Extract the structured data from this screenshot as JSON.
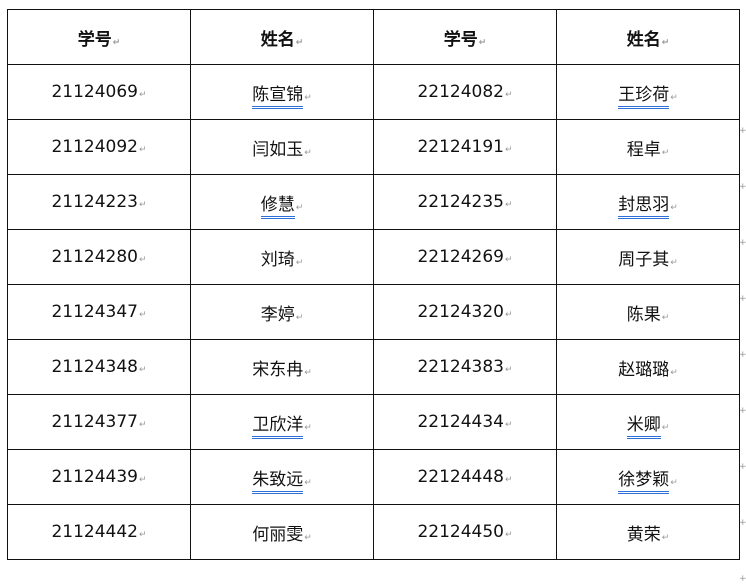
{
  "headers": [
    "学号",
    "姓名",
    "学号",
    "姓名"
  ],
  "paragraph_mark": "↵",
  "row_end_mark": "+",
  "rows": [
    {
      "id1": "21124069",
      "name1": "陈宣锦",
      "ul1": true,
      "id2": "22124082",
      "name2": "王珍荷",
      "ul2": true
    },
    {
      "id1": "21124092",
      "name1": "闫如玉",
      "ul1": false,
      "id2": "22124191",
      "name2": "程卓",
      "ul2": false
    },
    {
      "id1": "21124223",
      "name1": "修慧",
      "ul1": true,
      "id2": "22124235",
      "name2": "封思羽",
      "ul2": true
    },
    {
      "id1": "21124280",
      "name1": "刘琦",
      "ul1": false,
      "id2": "22124269",
      "name2": "周子其",
      "ul2": false
    },
    {
      "id1": "21124347",
      "name1": "李婷",
      "ul1": false,
      "id2": "22124320",
      "name2": "陈果",
      "ul2": false
    },
    {
      "id1": "21124348",
      "name1": "宋东冉",
      "ul1": false,
      "id2": "22124383",
      "name2": "赵璐璐",
      "ul2": false
    },
    {
      "id1": "21124377",
      "name1": "卫欣洋",
      "ul1": true,
      "id2": "22124434",
      "name2": "米卿",
      "ul2": true
    },
    {
      "id1": "21124439",
      "name1": "朱致远",
      "ul1": true,
      "id2": "22124448",
      "name2": "徐梦颖",
      "ul2": true
    },
    {
      "id1": "21124442",
      "name1": "何丽雯",
      "ul1": false,
      "id2": "22124450",
      "name2": "黄荣",
      "ul2": false
    }
  ],
  "colors": {
    "border": "#111111",
    "spell_underline": "#2e6fd8",
    "formatting_mark": "#999999"
  }
}
